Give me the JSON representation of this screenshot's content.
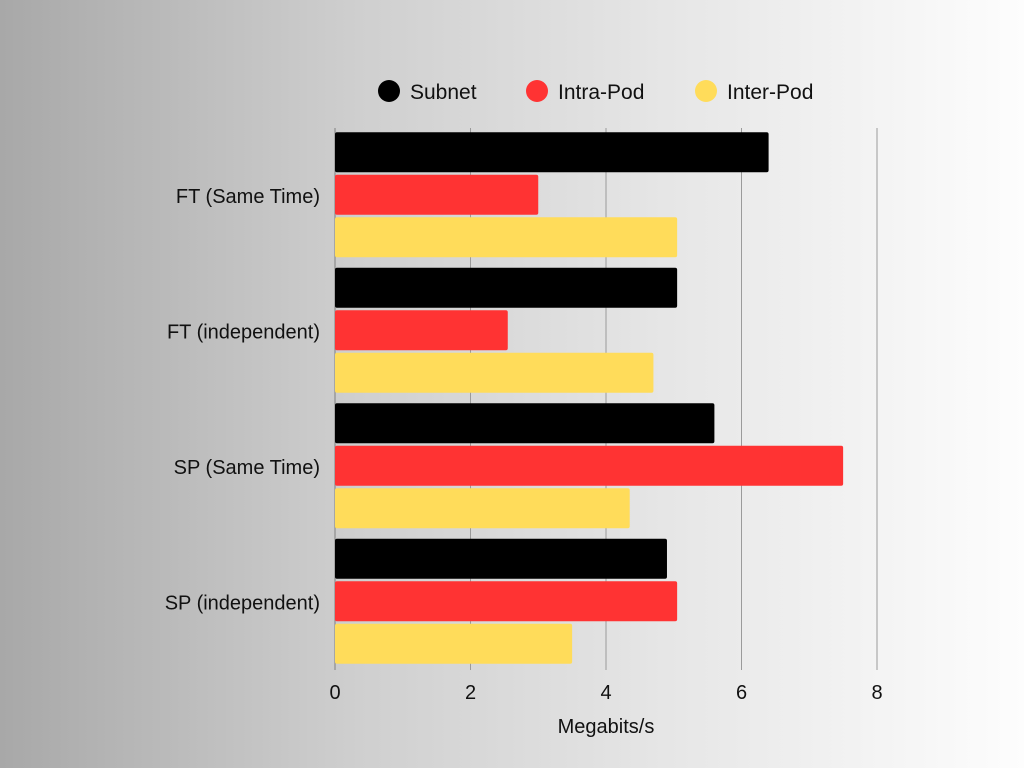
{
  "chart_data": {
    "type": "bar",
    "orientation": "horizontal",
    "categories": [
      "FT (Same Time)",
      "FT (independent)",
      "SP (Same Time)",
      "SP (independent)"
    ],
    "series": [
      {
        "name": "Subnet",
        "color": "#000000",
        "values": [
          6.4,
          5.05,
          5.6,
          4.9
        ]
      },
      {
        "name": "Intra-Pod",
        "color": "#ff3333",
        "values": [
          3.0,
          2.55,
          7.5,
          5.05
        ]
      },
      {
        "name": "Inter-Pod",
        "color": "#ffdc5a",
        "values": [
          5.05,
          4.7,
          4.35,
          3.5
        ]
      }
    ],
    "xlabel": "Megabits/s",
    "xlim": [
      0,
      8
    ],
    "xticks": [
      "0",
      "2",
      "4",
      "6",
      "8"
    ],
    "grid": true,
    "legend_position": "top"
  }
}
